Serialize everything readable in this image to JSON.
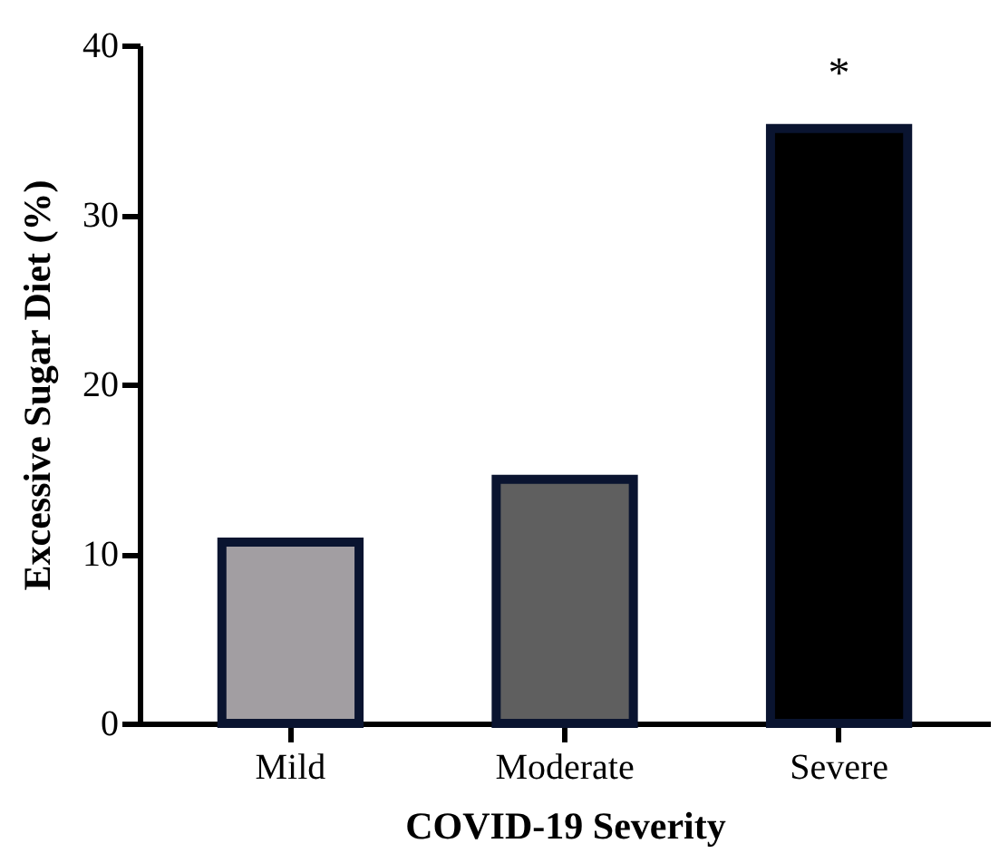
{
  "chart_data": {
    "type": "bar",
    "xlabel": "COVID-19 Severity",
    "ylabel": "Excessive Sugar Diet (%)",
    "categories": [
      "Mild",
      "Moderate",
      "Severe"
    ],
    "values": [
      10.7,
      14.4,
      35.1
    ],
    "colors": [
      "#a29ea2",
      "#5f5f5f",
      "#000000"
    ],
    "ylim": [
      0,
      40
    ],
    "yticks": [
      0,
      10,
      20,
      30,
      40
    ],
    "grid": false,
    "annotations": [
      "*"
    ]
  }
}
